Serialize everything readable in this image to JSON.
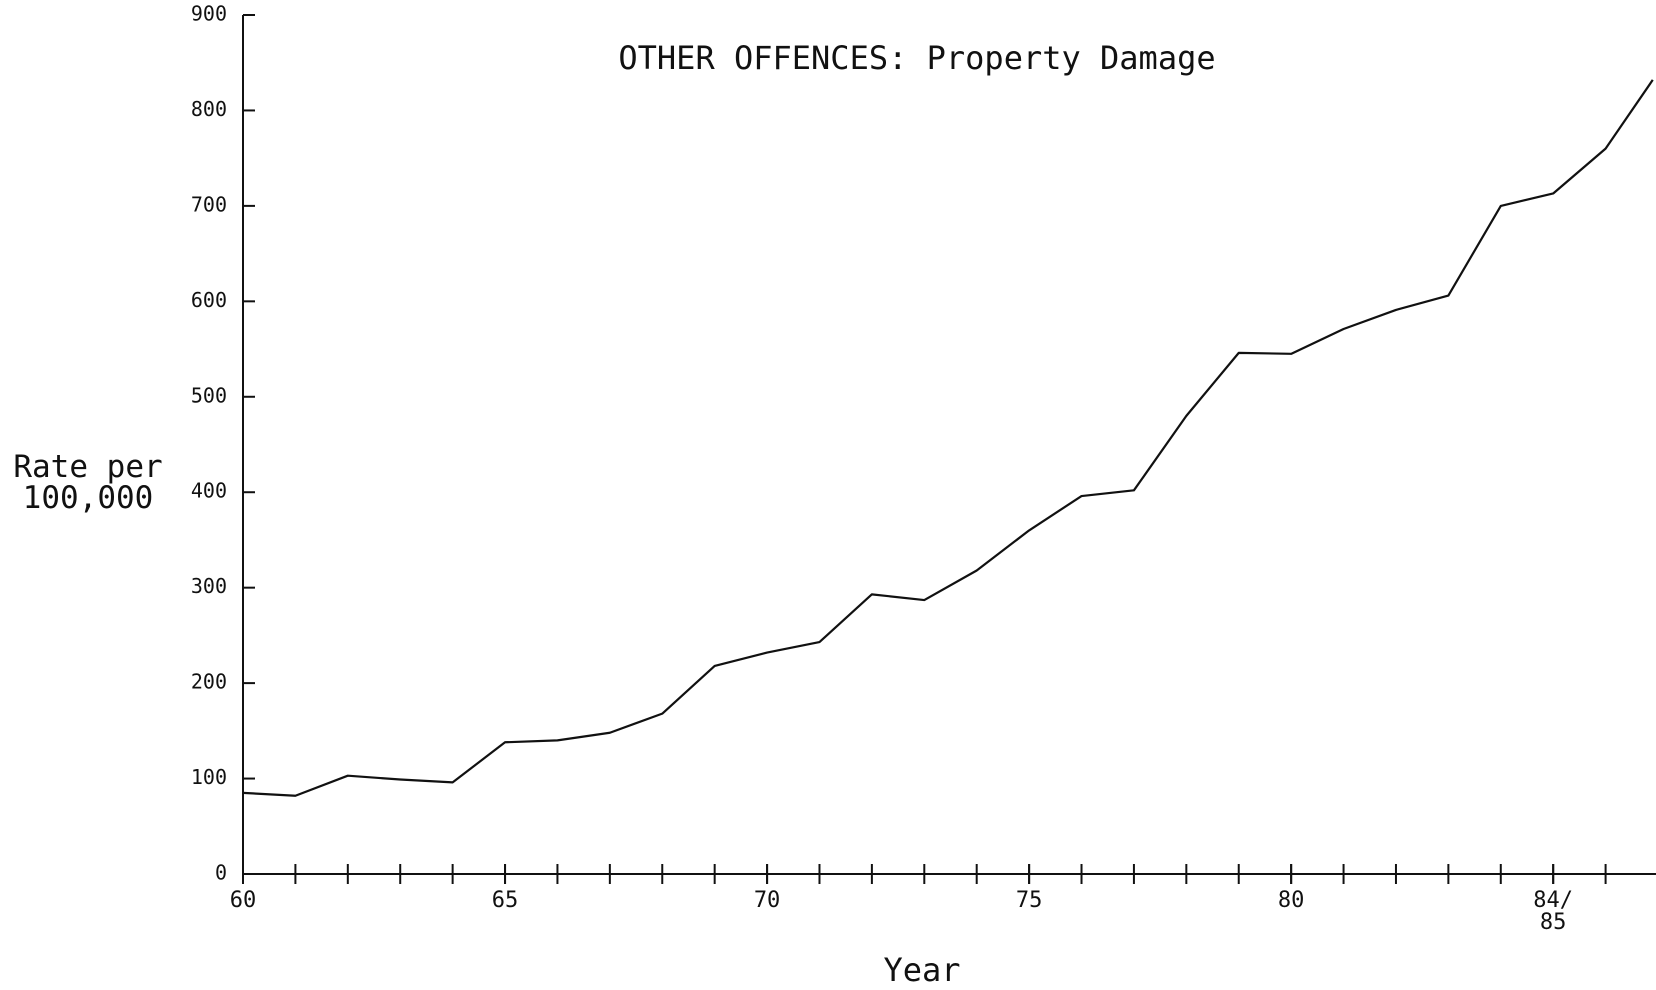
{
  "chart_data": {
    "type": "line",
    "title": "OTHER OFFENCES: Property Damage",
    "x_label": "Year",
    "y_label": "Rate per\n100,000",
    "x": [
      60,
      61,
      62,
      63,
      64,
      65,
      66,
      67,
      68,
      69,
      70,
      71,
      72,
      73,
      74,
      75,
      76,
      77,
      78,
      79,
      80,
      81,
      82,
      83,
      84,
      85,
      86,
      86.9
    ],
    "values": [
      85,
      82,
      103,
      99,
      96,
      138,
      140,
      148,
      168,
      218,
      232,
      243,
      293,
      287,
      318,
      360,
      396,
      402,
      480,
      546,
      545,
      571,
      591,
      606,
      700,
      713,
      760,
      832
    ],
    "color": "#111111",
    "xlim": [
      60,
      87
    ],
    "ylim": [
      0,
      900
    ],
    "xticks": [
      60,
      65,
      70,
      75,
      80,
      {
        "value": 85,
        "label": "84/\n85"
      }
    ],
    "x_minor_ticks": [
      60,
      61,
      62,
      63,
      64,
      65,
      66,
      67,
      68,
      69,
      70,
      71,
      72,
      73,
      74,
      75,
      76,
      77,
      78,
      79,
      80,
      81,
      82,
      83,
      84,
      85,
      86
    ],
    "yticks": [
      0,
      100,
      200,
      300,
      400,
      500,
      600,
      700,
      800,
      900
    ],
    "grid": false
  }
}
